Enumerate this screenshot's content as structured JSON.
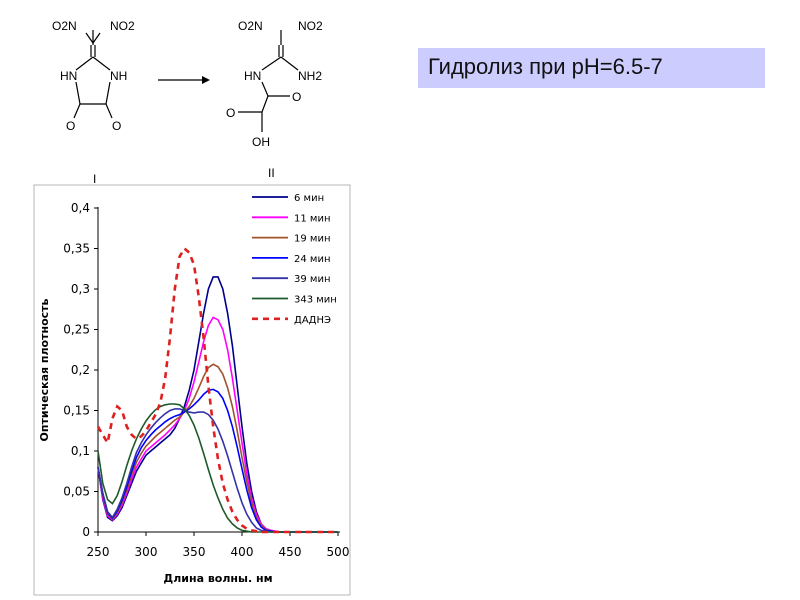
{
  "slide": {
    "title": "Гидролиз при рН=6.5-7"
  },
  "scheme": {
    "left": {
      "no2_left": "O2N",
      "no2_right": "NO2",
      "nh_left": "HN",
      "nh_right": "NH",
      "o_left": "O",
      "o_right": "O",
      "label": "I"
    },
    "right": {
      "no2_left": "O2N",
      "no2_right": "NO2",
      "hn": "HN",
      "nh2": "NH2",
      "o_acid": "O",
      "o_amide": "O",
      "oh": "OH",
      "label": "II"
    }
  },
  "chart_data": {
    "type": "line",
    "xlabel": "Длина волны. нм",
    "ylabel": "Оптическая плотность",
    "xlim": [
      250,
      500
    ],
    "ylim": [
      0,
      0.4
    ],
    "x_ticks": [
      "250",
      "300",
      "350",
      "400",
      "450",
      "500"
    ],
    "y_ticks": [
      "0",
      "0,05",
      "0,1",
      "0,15",
      "0,2",
      "0,25",
      "0,3",
      "0,35",
      "0,4"
    ],
    "grid": false,
    "legend_position": "top-right",
    "x": [
      250,
      255,
      260,
      265,
      270,
      275,
      280,
      285,
      290,
      295,
      300,
      305,
      310,
      315,
      320,
      325,
      330,
      335,
      340,
      345,
      350,
      355,
      360,
      365,
      370,
      375,
      380,
      385,
      390,
      395,
      400,
      405,
      410,
      415,
      420,
      425,
      430,
      435,
      440,
      445,
      450,
      460,
      470,
      480,
      490,
      500
    ],
    "series": [
      {
        "name": "6 мин",
        "color": "#00008b",
        "dash": false,
        "values": [
          0.08,
          0.04,
          0.018,
          0.014,
          0.02,
          0.03,
          0.045,
          0.06,
          0.075,
          0.085,
          0.095,
          0.1,
          0.105,
          0.11,
          0.115,
          0.12,
          0.128,
          0.14,
          0.155,
          0.175,
          0.2,
          0.235,
          0.27,
          0.3,
          0.315,
          0.315,
          0.3,
          0.27,
          0.23,
          0.18,
          0.13,
          0.085,
          0.05,
          0.025,
          0.01,
          0.004,
          0.002,
          0.001,
          0,
          0,
          0,
          0,
          0,
          0,
          0,
          0
        ]
      },
      {
        "name": "11 мин",
        "color": "#ff00ff",
        "dash": false,
        "values": [
          0.08,
          0.042,
          0.02,
          0.015,
          0.022,
          0.033,
          0.048,
          0.065,
          0.08,
          0.09,
          0.1,
          0.105,
          0.11,
          0.115,
          0.12,
          0.126,
          0.132,
          0.14,
          0.15,
          0.165,
          0.185,
          0.21,
          0.235,
          0.255,
          0.265,
          0.262,
          0.25,
          0.225,
          0.19,
          0.15,
          0.11,
          0.072,
          0.042,
          0.022,
          0.01,
          0.004,
          0.002,
          0.001,
          0,
          0,
          0,
          0,
          0,
          0,
          0,
          0
        ]
      },
      {
        "name": "19 мин",
        "color": "#a0522d",
        "dash": false,
        "values": [
          0.08,
          0.045,
          0.022,
          0.016,
          0.024,
          0.036,
          0.052,
          0.07,
          0.086,
          0.097,
          0.106,
          0.112,
          0.118,
          0.123,
          0.128,
          0.133,
          0.138,
          0.142,
          0.148,
          0.155,
          0.165,
          0.178,
          0.192,
          0.203,
          0.207,
          0.204,
          0.195,
          0.178,
          0.155,
          0.125,
          0.092,
          0.062,
          0.036,
          0.018,
          0.008,
          0.003,
          0.001,
          0,
          0,
          0,
          0,
          0,
          0,
          0,
          0,
          0
        ]
      },
      {
        "name": "24 мин",
        "color": "#0000ff",
        "dash": false,
        "values": [
          0.08,
          0.047,
          0.024,
          0.017,
          0.026,
          0.039,
          0.056,
          0.075,
          0.092,
          0.104,
          0.113,
          0.12,
          0.126,
          0.131,
          0.136,
          0.14,
          0.143,
          0.145,
          0.148,
          0.152,
          0.157,
          0.163,
          0.17,
          0.175,
          0.176,
          0.173,
          0.165,
          0.15,
          0.13,
          0.105,
          0.078,
          0.052,
          0.03,
          0.015,
          0.006,
          0.002,
          0.001,
          0,
          0,
          0,
          0,
          0,
          0,
          0,
          0,
          0
        ]
      },
      {
        "name": "39 мин",
        "color": "#3333aa",
        "dash": false,
        "values": [
          0.08,
          0.048,
          0.025,
          0.018,
          0.028,
          0.042,
          0.06,
          0.08,
          0.098,
          0.11,
          0.12,
          0.128,
          0.135,
          0.141,
          0.146,
          0.15,
          0.152,
          0.152,
          0.15,
          0.148,
          0.147,
          0.148,
          0.148,
          0.145,
          0.138,
          0.127,
          0.112,
          0.094,
          0.074,
          0.054,
          0.036,
          0.022,
          0.012,
          0.005,
          0.002,
          0.001,
          0,
          0,
          0,
          0,
          0,
          0,
          0,
          0,
          0,
          0
        ]
      },
      {
        "name": "343 мин",
        "color": "#1e5a2a",
        "dash": false,
        "values": [
          0.1,
          0.06,
          0.04,
          0.035,
          0.045,
          0.062,
          0.082,
          0.1,
          0.115,
          0.127,
          0.137,
          0.145,
          0.151,
          0.155,
          0.157,
          0.158,
          0.158,
          0.157,
          0.152,
          0.144,
          0.132,
          0.116,
          0.097,
          0.077,
          0.058,
          0.042,
          0.028,
          0.017,
          0.01,
          0.005,
          0.002,
          0.001,
          0,
          0,
          0,
          0,
          0,
          0,
          0,
          0,
          0,
          0,
          0,
          0,
          0,
          0
        ]
      },
      {
        "name": "ДАДНЭ",
        "color": "#e02020",
        "dash": true,
        "values": [
          0.13,
          0.12,
          0.11,
          0.14,
          0.155,
          0.15,
          0.13,
          0.12,
          0.115,
          0.118,
          0.125,
          0.135,
          0.145,
          0.16,
          0.19,
          0.24,
          0.3,
          0.34,
          0.35,
          0.345,
          0.33,
          0.29,
          0.24,
          0.18,
          0.13,
          0.09,
          0.06,
          0.04,
          0.025,
          0.015,
          0.008,
          0.004,
          0.002,
          0.001,
          0,
          0,
          0,
          0,
          0,
          0,
          0,
          0,
          0,
          0,
          0,
          0
        ]
      }
    ]
  }
}
